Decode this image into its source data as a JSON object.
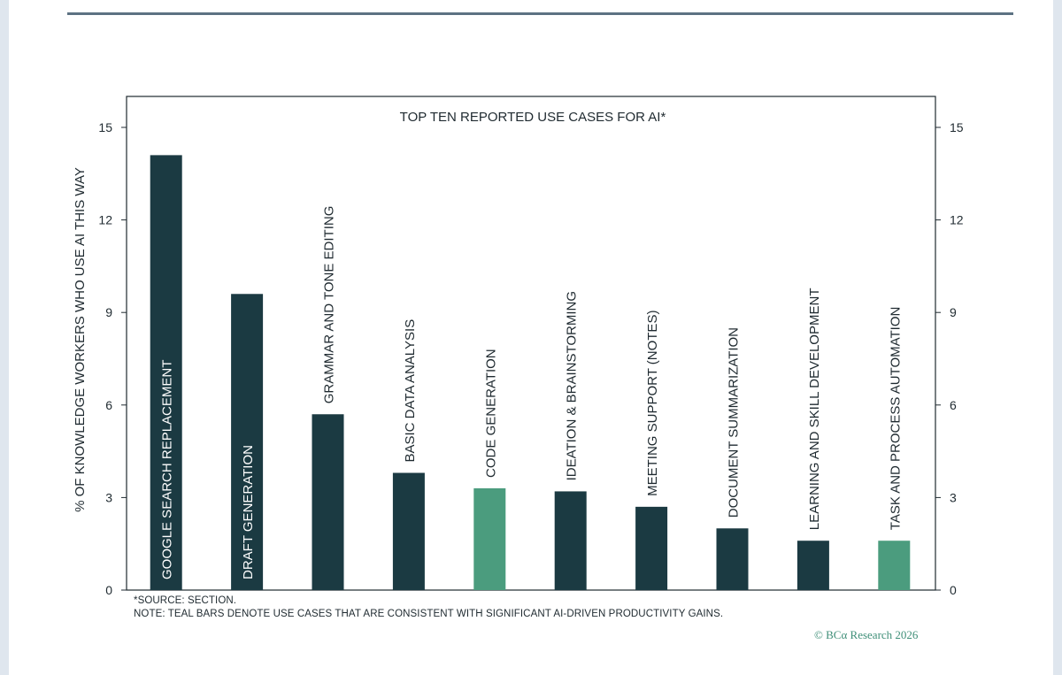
{
  "chart_data": {
    "type": "bar",
    "title": "TOP TEN REPORTED USE CASES FOR AI*",
    "ylabel": "% OF KNOWLEDGE WORKERS WHO USE AI THIS WAY",
    "ylim": [
      0,
      15
    ],
    "yticks": [
      0,
      3,
      6,
      9,
      12,
      15
    ],
    "categories": [
      "GOOGLE SEARCH REPLACEMENT",
      "DRAFT GENERATION",
      "GRAMMAR AND TONE EDITING",
      "BASIC DATA ANALYSIS",
      "CODE GENERATION",
      "IDEATION & BRAINSTORMING",
      "MEETING SUPPORT (NOTES)",
      "DOCUMENT SUMMARIZATION",
      "LEARNING AND SKILL DEVELOPMENT",
      "TASK AND PROCESS AUTOMATION"
    ],
    "values": [
      14.1,
      9.6,
      5.7,
      3.8,
      3.3,
      3.2,
      2.7,
      2.0,
      1.6,
      1.6
    ],
    "teal_flags": [
      false,
      false,
      false,
      false,
      true,
      false,
      false,
      false,
      false,
      true
    ],
    "colors": {
      "dark": "#1b3a42",
      "teal": "#4b9c7e",
      "frame": "#1f2a30"
    },
    "axes": "left and right, identical scale",
    "grid": false,
    "legend": "none"
  },
  "footnotes": {
    "source": "*SOURCE: SECTION.",
    "note": "NOTE: TEAL BARS DENOTE USE CASES THAT ARE CONSISTENT WITH SIGNIFICANT AI-DRIVEN PRODUCTIVITY GAINS."
  },
  "copyright": "© BCα Research 2026"
}
